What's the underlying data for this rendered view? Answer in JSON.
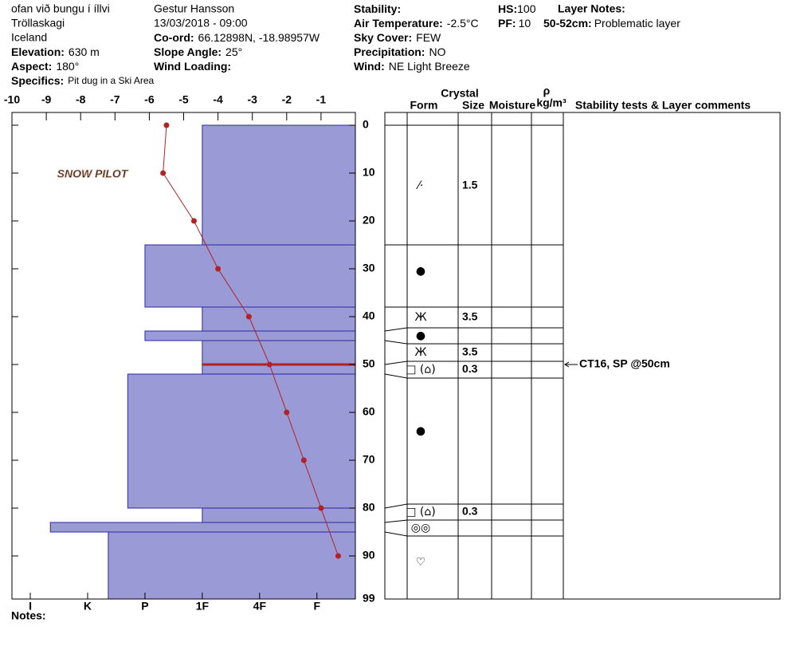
{
  "header": {
    "location": "ofan við bungu í íllvi",
    "region": "Tröllaskagi",
    "country": "Iceland",
    "elevation": {
      "label": "Elevation:",
      "value": "630 m"
    },
    "aspect": {
      "label": "Aspect:",
      "value": "180°"
    },
    "specifics": {
      "label": "Specifics:",
      "value": "Pit dug in a Ski Area"
    },
    "observer": "Gestur Hansson",
    "datetime": "13/03/2018 - 09:00",
    "coord": {
      "label": "Co-ord:",
      "value": "66.12898N, -18.98957W"
    },
    "slope": {
      "label": "Slope Angle:",
      "value": "25°"
    },
    "wind_loading": {
      "label": "Wind Loading:"
    },
    "stability": {
      "label": "Stability:"
    },
    "air_temp": {
      "label": "Air Temperature:",
      "value": "-2.5°C"
    },
    "sky": {
      "label": "Sky Cover:",
      "value": "FEW"
    },
    "precip": {
      "label": "Precipitation:",
      "value": "NO"
    },
    "wind": {
      "label": "Wind:",
      "value": "NE Light Breeze"
    },
    "hs": {
      "label": "HS:",
      "value": "100"
    },
    "pf": {
      "label": "PF:",
      "value": "10"
    },
    "layer_notes": {
      "label": "Layer Notes:",
      "items": [
        {
          "depth": "50-52cm:",
          "text": "Problematic layer"
        }
      ]
    }
  },
  "notes_label": "Notes:",
  "logo": "SNOW PILOT",
  "chart_data": {
    "type": "snowpit",
    "xlim": [
      -10,
      0
    ],
    "xticks": [
      -10,
      -9,
      -8,
      -7,
      -6,
      -5,
      -4,
      -3,
      -2,
      -1
    ],
    "ylim": [
      0,
      99
    ],
    "yticks": [
      0,
      10,
      20,
      30,
      40,
      50,
      60,
      70,
      80,
      90,
      99
    ],
    "temperature": {
      "color": "#b22222",
      "depths": [
        0,
        10,
        20,
        30,
        40,
        50,
        60,
        70,
        80,
        90
      ],
      "values": [
        -5.5,
        -5.6,
        -4.7,
        -4.0,
        -3.1,
        -2.5,
        -2.0,
        -1.5,
        -1.0,
        -0.5
      ]
    },
    "hardness_lim": [
      0.33,
      6.32
    ],
    "hardness_ticks": [
      {
        "value": 6,
        "label": "I"
      },
      {
        "value": 5,
        "label": "K"
      },
      {
        "value": 4,
        "label": "P"
      },
      {
        "value": 3,
        "label": "1F"
      },
      {
        "value": 2,
        "label": "4F"
      },
      {
        "value": 1,
        "label": "F"
      }
    ],
    "bar_color": "#9a9ad6",
    "layers": {
      "top": [
        0,
        25,
        38,
        43,
        45,
        50,
        52,
        80,
        83,
        85
      ],
      "bottom": [
        25,
        38,
        43,
        45,
        50,
        52,
        80,
        83,
        85,
        99
      ],
      "hardness": [
        3,
        4,
        3,
        4,
        3,
        3,
        4.3,
        3,
        5.65,
        4.64
      ],
      "form": [
        "⁄·",
        "●",
        "Ж",
        "●",
        "Ж",
        "□ (⌂)",
        "●",
        "□ (⌂)",
        "◎◎",
        "♡"
      ],
      "size": [
        "1.5",
        null,
        "3.5",
        null,
        "3.5",
        "0.3",
        null,
        "0.3",
        null,
        null
      ]
    },
    "problematic_depth": 50,
    "problematic_color": "#b22222",
    "columns": {
      "crystal": "Crystal",
      "form": "Form",
      "size": "Size",
      "moisture": "Moisture",
      "density": "ρ",
      "density_unit": "kg/m³",
      "comments": "Stability tests & Layer comments"
    },
    "stability_tests": [
      {
        "depth": 50,
        "text": "CT16, SP @50cm"
      }
    ]
  }
}
